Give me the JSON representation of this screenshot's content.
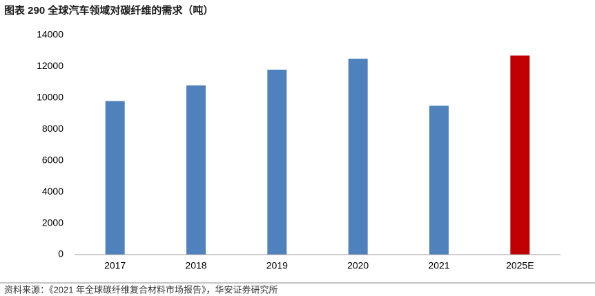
{
  "chart_data": {
    "type": "bar",
    "title": "图表 290  全球汽车领域对碳纤维的需求（吨）",
    "source": "资料来源：《2021 年全球碳纤维复合材料市场报告》，华安证券研究所",
    "categories": [
      "2017",
      "2018",
      "2019",
      "2020",
      "2021",
      "2025E"
    ],
    "values": [
      9800,
      10800,
      11800,
      12500,
      9500,
      12700
    ],
    "colors": [
      "#4f81bd",
      "#4f81bd",
      "#4f81bd",
      "#4f81bd",
      "#4f81bd",
      "#c00000"
    ],
    "ylim": [
      0,
      14000
    ],
    "yticks": [
      0,
      2000,
      4000,
      6000,
      8000,
      10000,
      12000,
      14000
    ],
    "grid": false
  }
}
